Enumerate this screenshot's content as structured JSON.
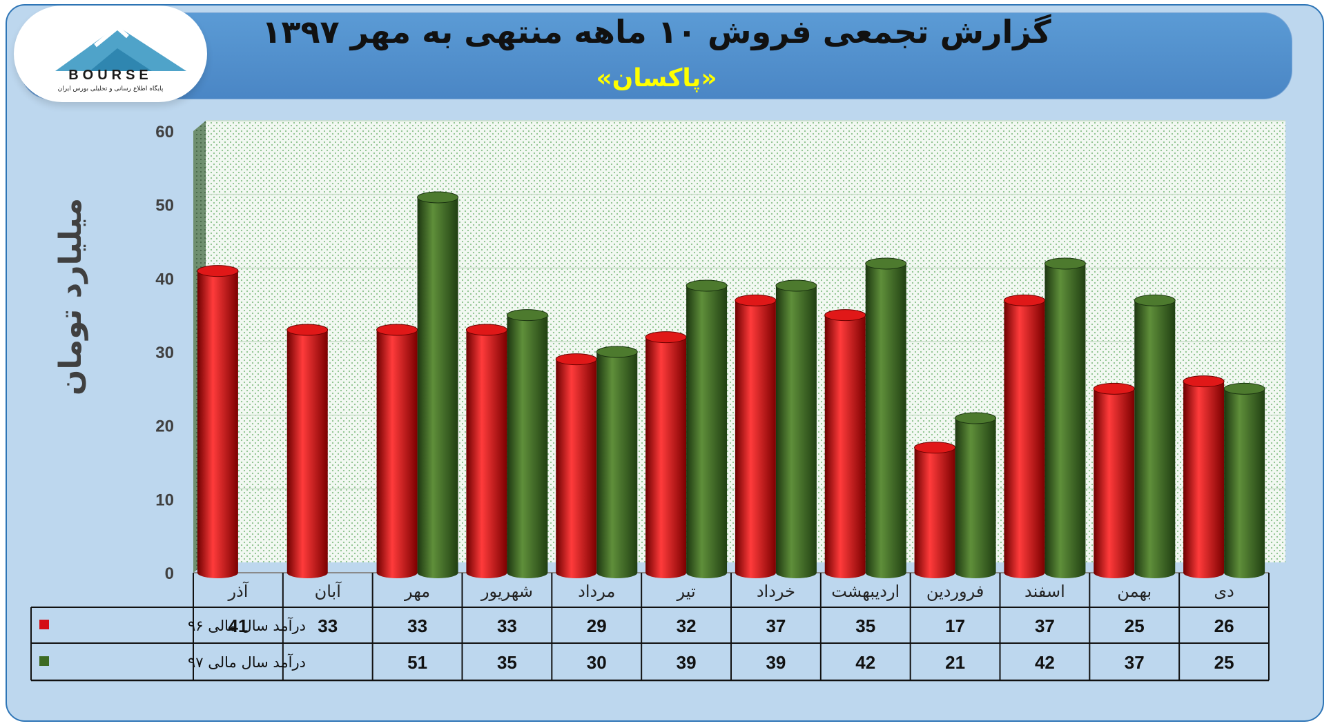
{
  "header": {
    "title": "گزارش تجمعی فروش ۱۰ ماهه منتهی به مهر ۱۳۹۷",
    "subtitle": "«پاکسان»"
  },
  "logo": {
    "word": "BOURSE",
    "tagline": "پایگاه اطلاع رسانی و تحلیلی بورس ایران"
  },
  "colors": {
    "series96": "#d40f14",
    "series97": "#3d6a22",
    "frame": "#bdd7ee",
    "header": "#5b9bd5",
    "title": "#111111",
    "subtitle": "#ffff00"
  },
  "chart_data": {
    "type": "bar",
    "ylabel": "میلیارد تومان",
    "ylim": [
      0,
      60
    ],
    "yticks": [
      0,
      10,
      20,
      30,
      40,
      50,
      60
    ],
    "grid": true,
    "categories": [
      "آذر",
      "آبان",
      "مهر",
      "شهریور",
      "مرداد",
      "تیر",
      "خرداد",
      "اردیبهشت",
      "فروردین",
      "اسفند",
      "بهمن",
      "دی"
    ],
    "series": [
      {
        "name": "درآمد سال مالی ۹۶",
        "color": "#d40f14",
        "values": [
          41,
          33,
          33,
          33,
          29,
          32,
          37,
          35,
          17,
          37,
          25,
          26
        ]
      },
      {
        "name": "درآمد سال مالی ۹۷",
        "color": "#3d6a22",
        "values": [
          null,
          null,
          51,
          35,
          30,
          39,
          39,
          42,
          21,
          42,
          37,
          25
        ]
      }
    ]
  }
}
